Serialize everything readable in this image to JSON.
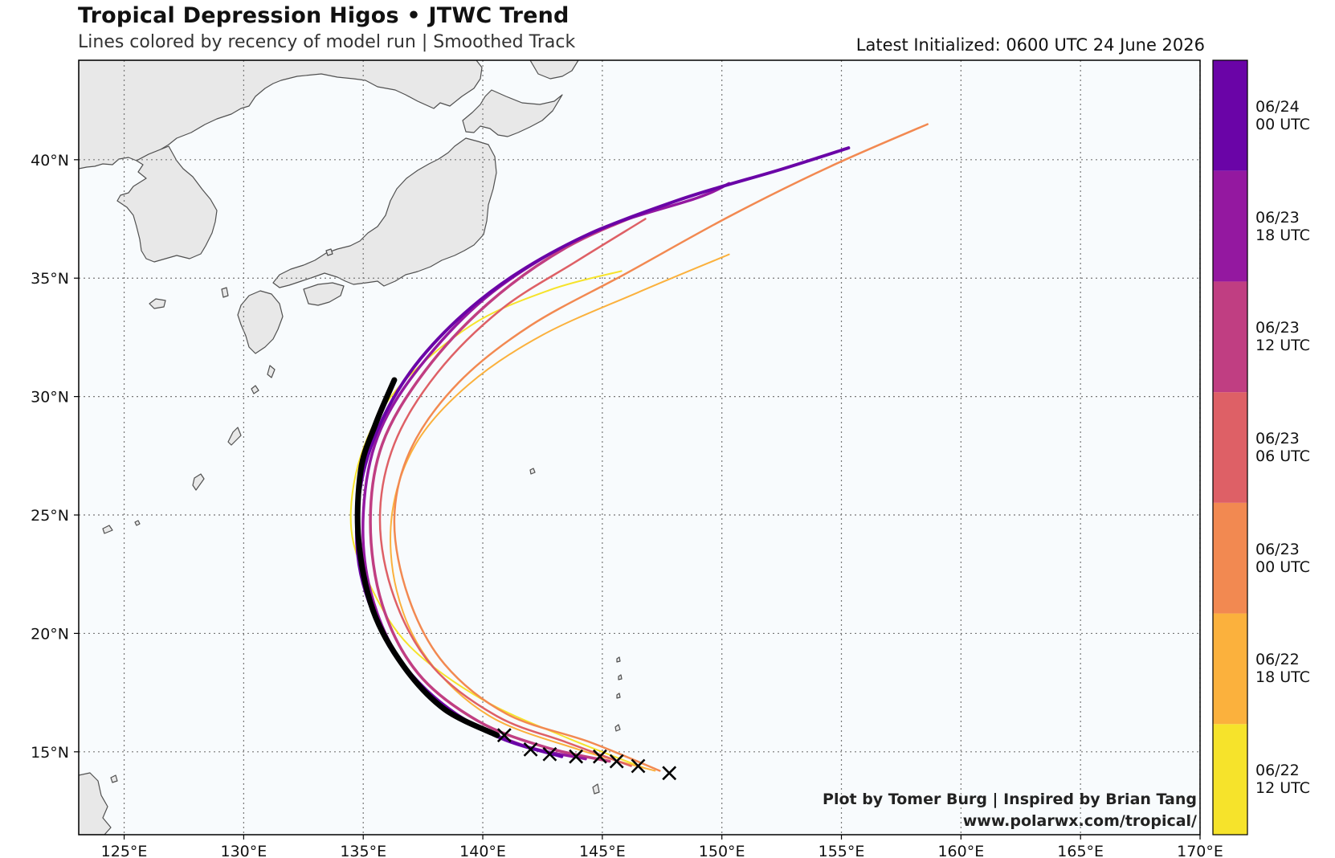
{
  "header": {
    "title": "Tropical Depression Higos • JTWC Trend",
    "subtitle": "Lines colored by recency of model run | Smoothed Track",
    "latest_init": "Latest Initialized: 0600 UTC 24 June 2026"
  },
  "credits": {
    "line1": "Plot by Tomer Burg | Inspired by Brian Tang",
    "line2": "www.polarwx.com/tropical/"
  },
  "map": {
    "lon_range": [
      123.1,
      170.0
    ],
    "lat_range": [
      11.5,
      44.2
    ],
    "lon_ticks": [
      125,
      130,
      135,
      140,
      145,
      150,
      155,
      160,
      165,
      170
    ],
    "lon_tick_labels": [
      "125°E",
      "130°E",
      "135°E",
      "140°E",
      "145°E",
      "150°E",
      "155°E",
      "160°E",
      "165°E",
      "170°E"
    ],
    "lat_ticks": [
      15,
      20,
      25,
      30,
      35,
      40
    ],
    "lat_tick_labels": [
      "15°N",
      "20°N",
      "25°N",
      "30°N",
      "35°N",
      "40°N"
    ],
    "ocean_color": "#f8fbfd",
    "land_color": "#e8e8e8",
    "grid": "dotted"
  },
  "colorbar": {
    "colors": [
      "#f6e32b",
      "#fbb13d",
      "#f28951",
      "#de6066",
      "#c03e82",
      "#9418a0",
      "#6a04a7"
    ],
    "labels": [
      [
        "06/22",
        "12 UTC"
      ],
      [
        "06/22",
        "18 UTC"
      ],
      [
        "06/23",
        "00 UTC"
      ],
      [
        "06/23",
        "06 UTC"
      ],
      [
        "06/23",
        "12 UTC"
      ],
      [
        "06/23",
        "18 UTC"
      ],
      [
        "06/24",
        "00 UTC"
      ]
    ]
  },
  "tracks": [
    {
      "run": "06/22 12 UTC",
      "color": "#f6e32b",
      "width": 2,
      "points": [
        [
          146.8,
          14.3
        ],
        [
          143.5,
          15.6
        ],
        [
          140,
          17.2
        ],
        [
          137,
          19.4
        ],
        [
          135.4,
          21.8
        ],
        [
          134.5,
          24.4
        ],
        [
          134.9,
          27.5
        ],
        [
          136.4,
          30.3
        ],
        [
          139.5,
          33
        ],
        [
          142.8,
          34.5
        ],
        [
          145.8,
          35.3
        ]
      ]
    },
    {
      "run": "06/22 18 UTC",
      "color": "#fbb13d",
      "width": 2,
      "points": [
        [
          147.2,
          14.2
        ],
        [
          144,
          15.1
        ],
        [
          140.3,
          16.5
        ],
        [
          137.7,
          18.9
        ],
        [
          136.4,
          21.8
        ],
        [
          136.2,
          25
        ],
        [
          137.2,
          28
        ],
        [
          139.4,
          30.5
        ],
        [
          142.5,
          32.6
        ],
        [
          146.5,
          34.4
        ],
        [
          150.3,
          36
        ]
      ]
    },
    {
      "run": "06/23 00 UTC",
      "color": "#f28951",
      "width": 2.5,
      "points": [
        [
          147.4,
          14.2
        ],
        [
          144.5,
          15.4
        ],
        [
          141,
          16.6
        ],
        [
          138.4,
          18.7
        ],
        [
          136.9,
          21.5
        ],
        [
          136.3,
          24.8
        ],
        [
          137,
          27.8
        ],
        [
          139,
          30.6
        ],
        [
          142,
          33
        ],
        [
          146,
          35.2
        ],
        [
          150.3,
          37.6
        ],
        [
          154.5,
          39.7
        ],
        [
          158.6,
          41.5
        ]
      ]
    },
    {
      "run": "06/23 06 UTC",
      "color": "#de6066",
      "width": 2.5,
      "points": [
        [
          146.2,
          14.4
        ],
        [
          143.5,
          15.4
        ],
        [
          140.6,
          16.5
        ],
        [
          137.9,
          18.6
        ],
        [
          136.3,
          21.5
        ],
        [
          135.7,
          24.8
        ],
        [
          136.3,
          28
        ],
        [
          138.1,
          31
        ],
        [
          140.8,
          33.7
        ],
        [
          143.9,
          35.7
        ],
        [
          146.8,
          37.5
        ]
      ]
    },
    {
      "run": "06/23 12 UTC",
      "color": "#c03e82",
      "width": 3.5,
      "points": [
        [
          145.3,
          14.6
        ],
        [
          142.6,
          15.2
        ],
        [
          139.8,
          16.3
        ],
        [
          137.3,
          18.3
        ],
        [
          135.8,
          21.2
        ],
        [
          135.3,
          24.7
        ],
        [
          135.8,
          28
        ],
        [
          137.6,
          31.1
        ],
        [
          140.3,
          34
        ],
        [
          143.5,
          36.3
        ],
        [
          146.8,
          37.8
        ]
      ]
    },
    {
      "run": "06/23 18 UTC",
      "color": "#9418a0",
      "width": 3.5,
      "points": [
        [
          144.3,
          14.7
        ],
        [
          141.6,
          15.3
        ],
        [
          138.9,
          16.6
        ],
        [
          136.6,
          18.8
        ],
        [
          135.3,
          21.8
        ],
        [
          135,
          25
        ],
        [
          135.6,
          28.3
        ],
        [
          137.4,
          31.3
        ],
        [
          140.4,
          34.4
        ],
        [
          144.5,
          36.9
        ],
        [
          149,
          38.4
        ],
        [
          150.3,
          39
        ]
      ]
    },
    {
      "run": "06/24 00 UTC",
      "color": "#6a04a7",
      "width": 4,
      "points": [
        [
          143.3,
          14.8
        ],
        [
          140.7,
          15.6
        ],
        [
          138.2,
          17.1
        ],
        [
          136.1,
          19.5
        ],
        [
          134.9,
          22.5
        ],
        [
          134.8,
          25.6
        ],
        [
          135.6,
          28.6
        ],
        [
          137.4,
          31.6
        ],
        [
          140.3,
          34.4
        ],
        [
          143.9,
          36.6
        ],
        [
          148.2,
          38.3
        ],
        [
          152.5,
          39.6
        ],
        [
          155.3,
          40.5
        ]
      ]
    }
  ],
  "official_track": {
    "color": "#000000",
    "width": 7,
    "points": [
      [
        140.6,
        15.7
      ],
      [
        138.4,
        16.8
      ],
      [
        136.7,
        18.6
      ],
      [
        135.4,
        21
      ],
      [
        134.8,
        24
      ],
      [
        134.9,
        26.9
      ],
      [
        135.5,
        28.8
      ],
      [
        136.3,
        30.7
      ]
    ]
  },
  "initial_positions": [
    [
      140.9,
      15.7
    ],
    [
      142,
      15.1
    ],
    [
      142.8,
      14.9
    ],
    [
      143.9,
      14.8
    ],
    [
      144.9,
      14.8
    ],
    [
      145.6,
      14.6
    ],
    [
      146.5,
      14.4
    ],
    [
      147.8,
      14.1
    ]
  ]
}
